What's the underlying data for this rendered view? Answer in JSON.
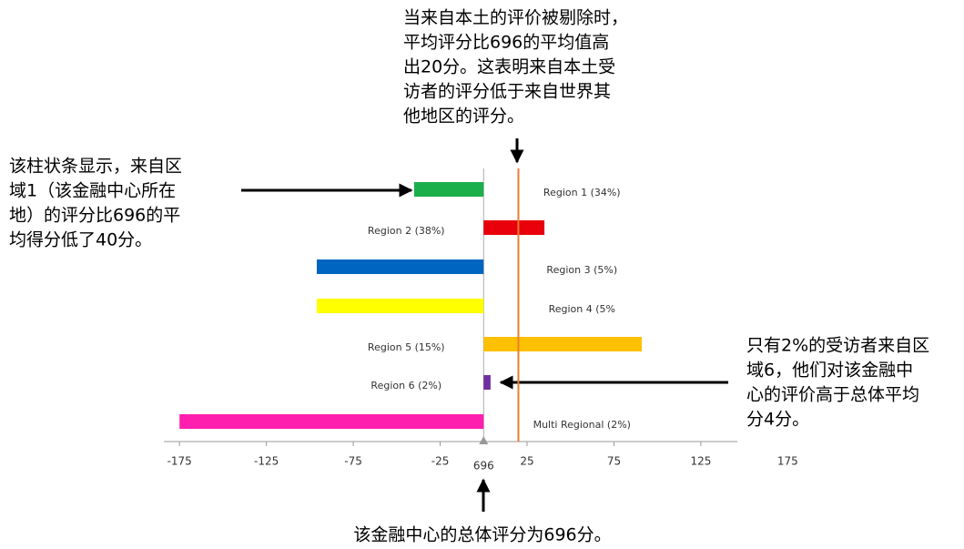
{
  "chart_data": {
    "type": "bar",
    "orientation": "horizontal",
    "categories": [
      "Region 1 (34%)",
      "Region 2 (38%)",
      "Region 3 (5%)",
      "Region 4 (5%",
      "Region 5 (15%)",
      "Region 6 (2%)",
      "Multi Regional (2%)"
    ],
    "values": [
      -40,
      35,
      -96,
      -96,
      91,
      4,
      -175
    ],
    "colors": [
      "#1aaf4b",
      "#e8000b",
      "#0065c1",
      "#ffff00",
      "#ffc000",
      "#7030a0",
      "#ff1fae"
    ],
    "xlim": [
      -184,
      146
    ],
    "xticks": [
      -175,
      -125,
      -75,
      -25,
      25,
      75,
      125,
      175
    ],
    "zero_label": "696",
    "reference_line": {
      "value": 20,
      "color": "#ed7d31"
    },
    "annotations": [
      {
        "lines": [
          "当来自本土的评价被剔除时，",
          "平均评分比696的平均值高",
          "出20分。这表明来自本土受",
          "访者的评分低于来自世界其",
          "他地区的评分。"
        ]
      },
      {
        "lines": [
          "该柱状条显示，来自区",
          "域1（该金融中心所在",
          "地）的评分比696的平",
          "均得分低了40分。"
        ]
      },
      {
        "lines": [
          "只有2%的受访者来自区",
          "域6，他们对该金融中",
          "心的评价高于总体平均",
          "分4分。"
        ]
      },
      {
        "lines": [
          "该金融中心的总体评分为696分。"
        ]
      }
    ]
  }
}
